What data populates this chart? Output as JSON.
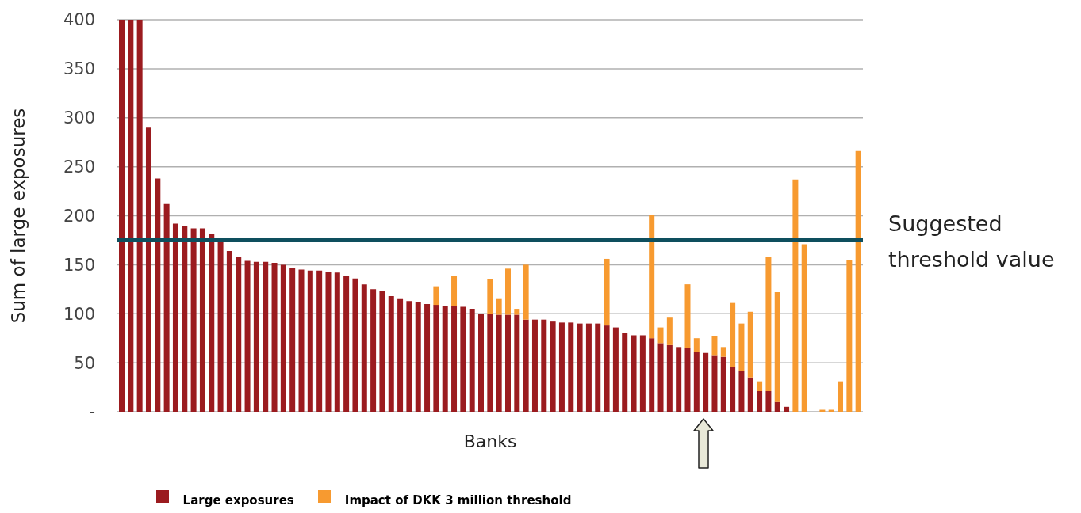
{
  "chart_data": {
    "type": "bar",
    "stacked": true,
    "xlabel": "Banks",
    "ylabel": "Sum of large exposures",
    "categories": [
      null,
      null,
      null,
      null,
      null,
      null,
      null,
      null,
      null,
      null,
      null,
      null,
      null,
      null,
      null,
      null,
      null,
      null,
      null,
      null,
      null,
      null,
      null,
      null,
      null,
      null,
      null,
      null,
      null,
      null,
      null,
      null,
      null,
      null,
      null,
      null,
      null,
      null,
      null,
      null,
      null,
      null,
      null,
      null,
      null,
      null,
      null,
      null,
      null,
      null,
      null,
      null,
      null,
      null,
      null,
      null,
      null,
      null,
      null,
      null,
      null,
      null,
      null,
      null,
      null,
      null,
      null,
      null,
      null,
      null,
      null,
      null,
      null,
      null,
      null,
      null,
      null,
      null,
      null,
      null,
      null,
      null,
      null
    ],
    "series": [
      {
        "name": "Large exposures",
        "color": "#9b1b1f",
        "values": [
          400,
          400,
          400,
          290,
          238,
          212,
          192,
          190,
          187,
          187,
          181,
          175,
          164,
          158,
          154,
          153,
          153,
          152,
          150,
          147,
          145,
          144,
          144,
          143,
          142,
          139,
          136,
          130,
          125,
          123,
          118,
          115,
          113,
          112,
          110,
          109,
          108,
          108,
          107,
          105,
          100,
          100,
          99,
          99,
          99,
          94,
          94,
          94,
          92,
          91,
          91,
          90,
          90,
          90,
          88,
          86,
          80,
          78,
          78,
          75,
          70,
          68,
          66,
          65,
          61,
          60,
          57,
          56,
          46,
          42,
          35,
          21,
          21,
          10,
          5,
          0,
          0,
          0,
          0,
          0,
          0,
          0,
          0
        ]
      },
      {
        "name": "Impact of DKK 3 million threshold",
        "color": "#f79a30",
        "values": [
          0,
          0,
          0,
          0,
          0,
          0,
          0,
          0,
          0,
          0,
          0,
          0,
          0,
          0,
          0,
          0,
          0,
          0,
          0,
          0,
          0,
          0,
          0,
          0,
          0,
          0,
          0,
          0,
          0,
          0,
          0,
          0,
          0,
          0,
          0,
          19,
          0,
          31,
          0,
          0,
          0,
          35,
          16,
          47,
          6,
          56,
          0,
          0,
          0,
          0,
          0,
          0,
          0,
          0,
          68,
          0,
          0,
          0,
          0,
          126,
          16,
          28,
          0,
          65,
          14,
          0,
          20,
          10,
          65,
          48,
          67,
          10,
          137,
          112,
          0,
          237,
          171,
          0,
          2,
          2,
          31,
          155,
          266
        ]
      }
    ],
    "ylim": [
      0,
      400
    ],
    "yticks": [
      {
        "value": 0,
        "label": "-"
      },
      50,
      100,
      150,
      200,
      250,
      300,
      350,
      400
    ],
    "grid": "y",
    "legend": "bottom",
    "ref_lines": [
      {
        "axis": "y",
        "value": 175,
        "label": "Suggested threshold value",
        "color": "#0e4f5e"
      }
    ]
  }
}
